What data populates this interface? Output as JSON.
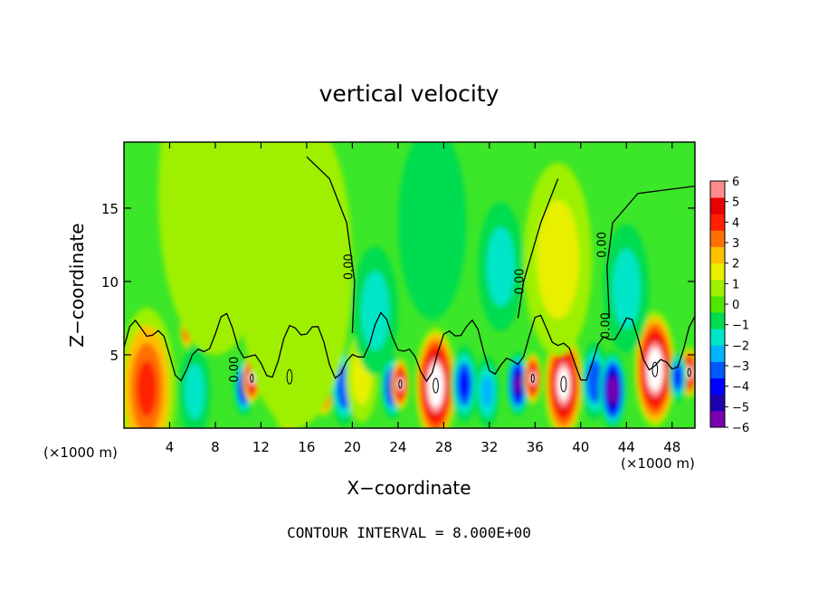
{
  "chart_data": {
    "type": "heatmap",
    "title": "vertical velocity",
    "xlabel": "X−coordinate",
    "ylabel": "Z−coordinate",
    "x_unit_left": "(×1000 m)",
    "x_unit_right": "(×1000 m)",
    "footer": "CONTOUR INTERVAL = 8.000E+00",
    "xlim": [
      0,
      50
    ],
    "ylim": [
      0,
      19.5
    ],
    "x_ticks": [
      4,
      8,
      12,
      16,
      20,
      24,
      28,
      32,
      36,
      40,
      44,
      48
    ],
    "x_tick_labels": [
      "4",
      "8",
      "12",
      "16",
      "20",
      "24",
      "28",
      "32",
      "36",
      "40",
      "44",
      "48"
    ],
    "y_ticks": [
      5,
      10,
      15
    ],
    "y_tick_labels": [
      "5",
      "10",
      "15"
    ],
    "colorbar": {
      "range": [
        -6,
        6
      ],
      "ticks": [
        6,
        5,
        4,
        3,
        2,
        1,
        0,
        -1,
        -2,
        -3,
        -4,
        -5,
        -6
      ],
      "tick_labels": [
        "6",
        "5",
        "4",
        "3",
        "2",
        "1",
        "0",
        "−1",
        "−2",
        "−3",
        "−4",
        "−5",
        "−6"
      ],
      "colors": [
        "#7b00b0",
        "#1f00b0",
        "#0000ff",
        "#0058ff",
        "#00b4ff",
        "#00e6c8",
        "#00dc50",
        "#50e600",
        "#9ef000",
        "#e8f000",
        "#ffc000",
        "#ff7000",
        "#ff2000",
        "#e80000",
        "#ff8c8c"
      ]
    },
    "contour_labels": [
      {
        "text": "0.00",
        "x": 20.0,
        "y": 11.0
      },
      {
        "text": "0.00",
        "x": 35.0,
        "y": 10.0
      },
      {
        "text": "0.00",
        "x": 42.2,
        "y": 12.5
      },
      {
        "text": "0.00",
        "x": 10.0,
        "y": 4.0
      },
      {
        "text": "0.00",
        "x": 42.5,
        "y": 7.0
      }
    ],
    "cells": [
      {
        "x": 2.0,
        "z": 2.7,
        "w": 2.5,
        "peak": 4.0
      },
      {
        "x": 6.2,
        "z": 2.5,
        "w": 1.4,
        "peak": -1.2
      },
      {
        "x": 10.5,
        "z": 2.8,
        "w": 0.9,
        "peak": -5.0
      },
      {
        "x": 11.2,
        "z": 3.4,
        "w": 0.8,
        "peak": 7.0
      },
      {
        "x": 14.5,
        "z": 3.5,
        "w": 1.8,
        "peak": 8.5
      },
      {
        "x": 16.8,
        "z": 2.8,
        "w": 0.8,
        "peak": -5.0
      },
      {
        "x": 17.5,
        "z": 3.0,
        "w": 1.0,
        "peak": 6.5
      },
      {
        "x": 19.3,
        "z": 2.8,
        "w": 1.2,
        "peak": -3.2
      },
      {
        "x": 20.8,
        "z": 3.5,
        "w": 1.4,
        "peak": 1.8
      },
      {
        "x": 23.5,
        "z": 2.8,
        "w": 1.0,
        "peak": -4.5
      },
      {
        "x": 24.2,
        "z": 3.0,
        "w": 0.8,
        "peak": 7.0
      },
      {
        "x": 27.3,
        "z": 2.9,
        "w": 1.8,
        "peak": 8.5
      },
      {
        "x": 29.8,
        "z": 3.0,
        "w": 1.2,
        "peak": -4.0
      },
      {
        "x": 31.8,
        "z": 2.5,
        "w": 1.1,
        "peak": -2.5
      },
      {
        "x": 34.5,
        "z": 3.0,
        "w": 1.0,
        "peak": -5.5
      },
      {
        "x": 35.8,
        "z": 3.4,
        "w": 0.8,
        "peak": 7.0
      },
      {
        "x": 38.5,
        "z": 3.0,
        "w": 1.7,
        "peak": 8.0
      },
      {
        "x": 41.2,
        "z": 3.2,
        "w": 1.2,
        "peak": -3.5
      },
      {
        "x": 42.8,
        "z": 2.6,
        "w": 1.2,
        "peak": -6.5
      },
      {
        "x": 46.5,
        "z": 4.0,
        "w": 1.8,
        "peak": 8.5
      },
      {
        "x": 49.5,
        "z": 3.8,
        "w": 0.8,
        "peak": 7.0
      },
      {
        "x": 48.5,
        "z": 3.5,
        "w": 0.8,
        "peak": -4.0
      },
      {
        "x": 5.5,
        "z": 6.7,
        "w": 0.6,
        "peak": 4.0
      },
      {
        "x": 15.0,
        "z": 11.0,
        "w": 5.0,
        "peak": 0.8
      },
      {
        "x": 38.0,
        "z": 11.5,
        "w": 3.0,
        "peak": 1.5
      },
      {
        "x": 33.0,
        "z": 11.0,
        "w": 2.0,
        "peak": -1.6
      },
      {
        "x": 27.0,
        "z": 14.0,
        "w": 3.0,
        "peak": -0.9
      },
      {
        "x": 8.0,
        "z": 16.0,
        "w": 5.0,
        "peak": 0.5
      },
      {
        "x": 44.0,
        "z": 9.5,
        "w": 2.0,
        "peak": -1.2
      },
      {
        "x": 22.0,
        "z": 8.0,
        "w": 2.0,
        "peak": -1.3
      }
    ]
  }
}
